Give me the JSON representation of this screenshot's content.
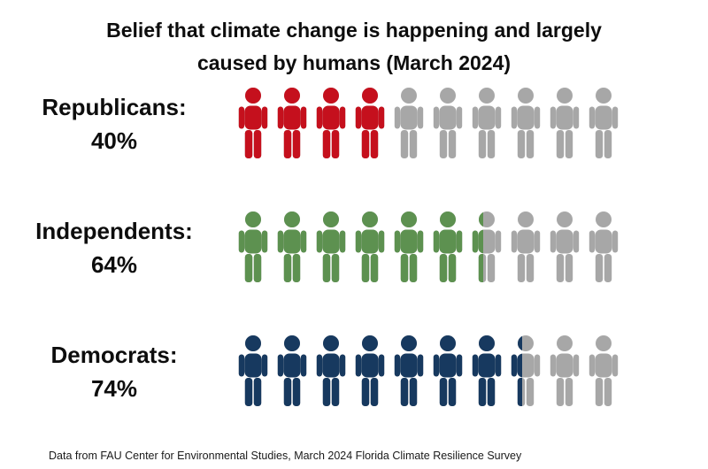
{
  "header": {
    "title_line1": "Belief that climate change is happening and largely",
    "title_line2": "caused by humans (March 2024)"
  },
  "footer": {
    "source_note": "Data from FAU Center for Environmental Studies, March 2024 Florida Climate Resilience Survey"
  },
  "chart_data": {
    "type": "pictogram",
    "title": "Belief that climate change is happening and largely caused by humans (March 2024)",
    "unit_total": 10,
    "unit_value_percent": 10,
    "categories": [
      "Republicans",
      "Independents",
      "Democrats"
    ],
    "values": [
      40,
      64,
      74
    ],
    "empty_color": "#a7a7a7",
    "rows": [
      {
        "label": "Republicans:",
        "percent_label": "40%",
        "value": 40,
        "color": "#c5101d"
      },
      {
        "label": "Independents:",
        "percent_label": "64%",
        "value": 64,
        "color": "#5d9150"
      },
      {
        "label": "Democrats:",
        "percent_label": "74%",
        "value": 74,
        "color": "#17395f"
      }
    ]
  }
}
